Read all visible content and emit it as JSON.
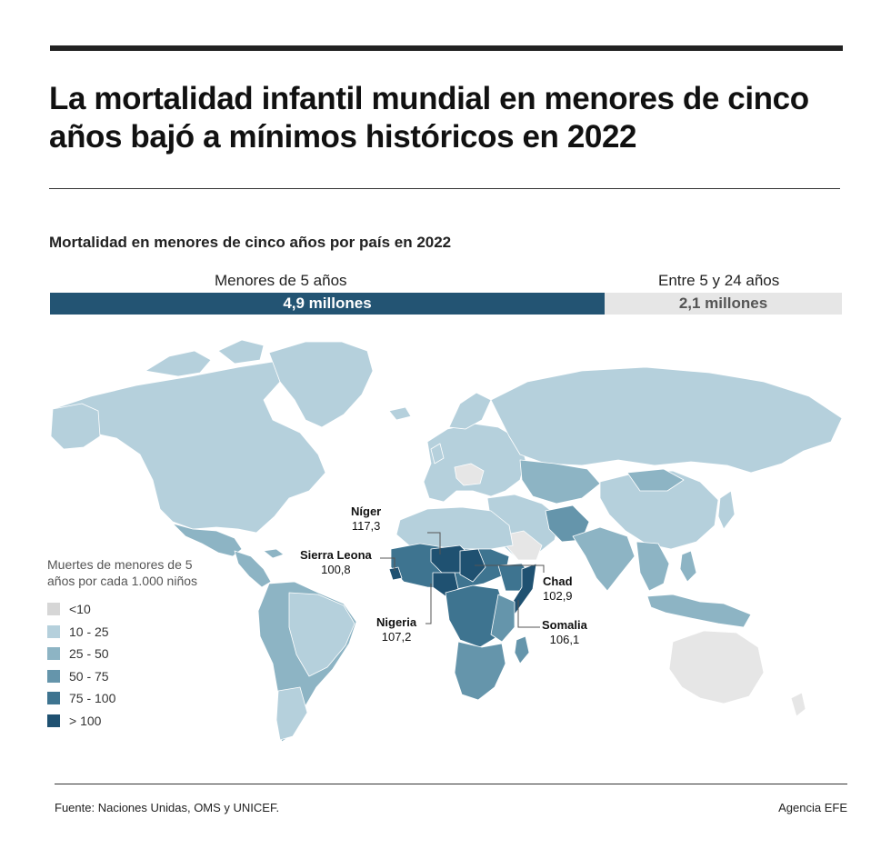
{
  "header": {
    "title": "La mortalidad infantil mundial en menores de cinco años bajó a mínimos históricos en 2022",
    "subtitle": "Mortalidad en menores de cinco años por país en 2022"
  },
  "deaths_bar": {
    "under5": {
      "caption": "Menores de 5 años",
      "value_label": "4,9 millones",
      "value_millions": 4.9,
      "color": "#235473"
    },
    "age5to24": {
      "caption": "Entre 5 y 24 años",
      "value_label": "2,1 millones",
      "value_millions": 2.1,
      "color": "#e6e6e6"
    }
  },
  "legend": {
    "title": "Muertes de menores de 5 años por cada 1.000 niños",
    "items": [
      {
        "label": "<10",
        "color": "#d6d6d6"
      },
      {
        "label": "10 - 25",
        "color": "#b5d0dc"
      },
      {
        "label": "25 - 50",
        "color": "#8db4c4"
      },
      {
        "label": "50 - 75",
        "color": "#6595ab"
      },
      {
        "label": "75 - 100",
        "color": "#3e7490"
      },
      {
        "label": "> 100",
        "color": "#1f5171"
      }
    ]
  },
  "callouts": [
    {
      "country": "Níger",
      "value": "117,3"
    },
    {
      "country": "Sierra Leona",
      "value": "100,8"
    },
    {
      "country": "Chad",
      "value": "102,9"
    },
    {
      "country": "Nigeria",
      "value": "107,2"
    },
    {
      "country": "Somalia",
      "value": "106,1"
    }
  ],
  "footer": {
    "source": "Fuente: Naciones Unidas, OMS y UNICEF.",
    "credit": "Agencia EFE"
  }
}
